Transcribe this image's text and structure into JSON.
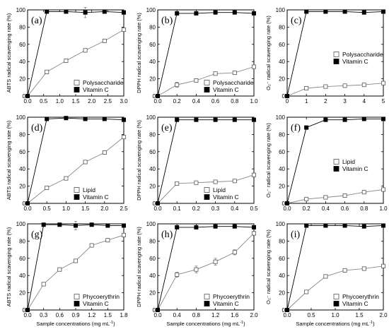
{
  "figure": {
    "shared_xlabel": "Sample concentrations (mg mL",
    "shared_xlabel_sup": "-1",
    "shared_xlabel_end": ")"
  },
  "chart_data": [
    {
      "type": "line",
      "panel_label": "(a)",
      "ylabel": "ABTS radical scavenging rate (%)",
      "xlim": [
        0,
        3.0
      ],
      "ylim": [
        0,
        100
      ],
      "xticks": [
        0.0,
        0.5,
        1.0,
        1.5,
        2.0,
        2.5,
        3.0
      ],
      "xtick_decimals": 1,
      "yticks": [
        0,
        20,
        40,
        60,
        80,
        100
      ],
      "legend_position": "bottom-right",
      "series": [
        {
          "name": "Polysaccharide",
          "marker": "open-square",
          "x": [
            0,
            0.6,
            1.2,
            1.8,
            2.4,
            3.0
          ],
          "y": [
            0,
            28,
            41,
            53,
            64,
            77
          ],
          "err": [
            0,
            1.5,
            1.5,
            2,
            2,
            2
          ]
        },
        {
          "name": "Vitamin C",
          "marker": "filled-square",
          "x": [
            0,
            0.6,
            1.2,
            1.8,
            2.4,
            3.0
          ],
          "y": [
            0,
            98,
            98,
            97,
            98,
            97
          ],
          "err": [
            0,
            1,
            1,
            6,
            2,
            1
          ]
        }
      ]
    },
    {
      "type": "line",
      "panel_label": "(b)",
      "ylabel": "DPPH radical scavenging rate (%)",
      "xlim": [
        0,
        1.0
      ],
      "ylim": [
        0,
        100
      ],
      "xticks": [
        0.0,
        0.2,
        0.4,
        0.6,
        0.8,
        1.0
      ],
      "xtick_decimals": 1,
      "yticks": [
        0,
        20,
        40,
        60,
        80,
        100
      ],
      "legend_position": "bottom-right",
      "series": [
        {
          "name": "Polysaccharide",
          "marker": "open-square",
          "x": [
            0,
            0.2,
            0.4,
            0.6,
            0.8,
            1.0
          ],
          "y": [
            0,
            13,
            18,
            26,
            27,
            34
          ],
          "err": [
            0,
            3,
            2,
            1.5,
            1.5,
            1.5
          ]
        },
        {
          "name": "Vitamin C",
          "marker": "filled-square",
          "x": [
            0,
            0.2,
            0.4,
            0.6,
            0.8,
            1.0
          ],
          "y": [
            0,
            96,
            96,
            97,
            97,
            96
          ],
          "err": [
            0,
            1,
            1,
            1,
            1,
            1
          ]
        }
      ]
    },
    {
      "type": "line",
      "panel_label": "(c)",
      "ylabel": "O₂⁻ radical scavenging rate (%)",
      "xlim": [
        0,
        5
      ],
      "ylim": [
        0,
        100
      ],
      "xticks": [
        0,
        1,
        2,
        3,
        4,
        5
      ],
      "xtick_decimals": 0,
      "yticks": [
        0,
        20,
        40,
        60,
        80,
        100
      ],
      "legend_position": "middle-right",
      "series": [
        {
          "name": "Polysaccharide",
          "marker": "open-square",
          "x": [
            0,
            1,
            2,
            3,
            4,
            5
          ],
          "y": [
            0,
            9,
            11,
            12,
            13,
            15
          ],
          "err": [
            0,
            1,
            1,
            1,
            1,
            1
          ]
        },
        {
          "name": "Vitamin C",
          "marker": "filled-square",
          "x": [
            0,
            1,
            2,
            3,
            4,
            5
          ],
          "y": [
            0,
            98,
            98,
            98,
            97,
            98
          ],
          "err": [
            0,
            1,
            1,
            1,
            1,
            1
          ]
        }
      ]
    },
    {
      "type": "line",
      "panel_label": "(d)",
      "ylabel": "ABTS radical scavenging rate (%)",
      "xlim": [
        0,
        2.5
      ],
      "ylim": [
        0,
        100
      ],
      "xticks": [
        0.0,
        0.5,
        1.0,
        1.5,
        2.0,
        2.5
      ],
      "xtick_decimals": 1,
      "yticks": [
        0,
        20,
        40,
        60,
        80,
        100
      ],
      "legend_position": "bottom-right",
      "series": [
        {
          "name": "Lipid",
          "marker": "open-square",
          "x": [
            0,
            0.5,
            1.0,
            1.5,
            2.0,
            2.5
          ],
          "y": [
            0,
            18,
            29,
            48,
            59,
            77
          ],
          "err": [
            0,
            1.5,
            1.5,
            1.5,
            1.5,
            1.5
          ]
        },
        {
          "name": "Vitamin C",
          "marker": "filled-square",
          "x": [
            0,
            0.5,
            1.0,
            1.5,
            2.0,
            2.5
          ],
          "y": [
            0,
            98,
            99,
            98,
            98,
            97
          ],
          "err": [
            0,
            1,
            1,
            1,
            1,
            1
          ]
        }
      ]
    },
    {
      "type": "line",
      "panel_label": "(e)",
      "ylabel": "DPPH radical scavenging rate (%)",
      "xlim": [
        0,
        0.5
      ],
      "ylim": [
        0,
        100
      ],
      "xticks": [
        0.0,
        0.1,
        0.2,
        0.3,
        0.4,
        0.5
      ],
      "xtick_decimals": 1,
      "yticks": [
        0,
        20,
        40,
        60,
        80,
        100
      ],
      "legend_position": "bottom-right",
      "series": [
        {
          "name": "Lipid",
          "marker": "open-square",
          "x": [
            0,
            0.1,
            0.2,
            0.3,
            0.4,
            0.5
          ],
          "y": [
            0,
            23,
            24,
            25,
            26,
            33
          ],
          "err": [
            0,
            1.5,
            1,
            1,
            1,
            1.5
          ]
        },
        {
          "name": "Vitamin C",
          "marker": "filled-square",
          "x": [
            0,
            0.1,
            0.2,
            0.3,
            0.4,
            0.5
          ],
          "y": [
            0,
            97,
            97,
            97,
            97,
            97
          ],
          "err": [
            0,
            1,
            1,
            1,
            1,
            1
          ]
        }
      ]
    },
    {
      "type": "line",
      "panel_label": "(f)",
      "ylabel": "O₂⁻ radical scavenging rate (%)",
      "xlim": [
        0,
        1.0
      ],
      "ylim": [
        0,
        100
      ],
      "xticks": [
        0.0,
        0.2,
        0.4,
        0.6,
        0.8,
        1.0
      ],
      "xtick_decimals": 1,
      "yticks": [
        0,
        20,
        40,
        60,
        80,
        100
      ],
      "legend_position": "middle-right",
      "series": [
        {
          "name": "Lipid",
          "marker": "open-square",
          "x": [
            0,
            0.2,
            0.4,
            0.6,
            0.8,
            1.0
          ],
          "y": [
            0,
            5,
            7,
            9,
            13,
            16
          ],
          "err": [
            0,
            1,
            1,
            1,
            1,
            1
          ]
        },
        {
          "name": "Vitamin C",
          "marker": "filled-square",
          "x": [
            0,
            0.2,
            0.4,
            0.6,
            0.8,
            1.0
          ],
          "y": [
            0,
            88,
            97,
            97,
            98,
            98
          ],
          "err": [
            0,
            1,
            1,
            1,
            1,
            1
          ]
        }
      ]
    },
    {
      "type": "line",
      "panel_label": "(g)",
      "ylabel": "ABTS radical scavenging rate (%)",
      "xlim": [
        0,
        1.8
      ],
      "ylim": [
        0,
        100
      ],
      "xticks": [
        0.0,
        0.3,
        0.6,
        0.9,
        1.2,
        1.5,
        1.8
      ],
      "xtick_decimals": 1,
      "yticks": [
        0,
        20,
        40,
        60,
        80,
        100
      ],
      "legend_position": "bottom-right",
      "series": [
        {
          "name": "Phycoerythrin",
          "marker": "open-square",
          "x": [
            0,
            0.3,
            0.6,
            0.9,
            1.2,
            1.5,
            1.8
          ],
          "y": [
            0,
            30,
            47,
            57,
            75,
            81,
            87
          ],
          "err": [
            0,
            1.5,
            1.5,
            2,
            2,
            2,
            2
          ]
        },
        {
          "name": "Vitamin C",
          "marker": "filled-square",
          "x": [
            0,
            0.3,
            0.6,
            0.9,
            1.2,
            1.5,
            1.8
          ],
          "y": [
            0,
            99,
            99,
            98,
            99,
            98,
            98
          ],
          "err": [
            0,
            1,
            1,
            5,
            1,
            2,
            1
          ]
        }
      ]
    },
    {
      "type": "line",
      "panel_label": "(h)",
      "ylabel": "DPPH radical scavenging rate (%)",
      "xlim": [
        0,
        2.0
      ],
      "ylim": [
        0,
        100
      ],
      "xticks": [
        0.0,
        0.4,
        0.8,
        1.2,
        1.6,
        2.0
      ],
      "xtick_decimals": 1,
      "yticks": [
        0,
        20,
        40,
        60,
        80,
        100
      ],
      "legend_position": "bottom-right",
      "series": [
        {
          "name": "Phycoerythrin",
          "marker": "open-square",
          "x": [
            0,
            0.4,
            0.8,
            1.2,
            1.6,
            2.0
          ],
          "y": [
            0,
            41,
            47,
            56,
            67,
            89
          ],
          "err": [
            0,
            3,
            4,
            4,
            3,
            2
          ]
        },
        {
          "name": "Vitamin C",
          "marker": "filled-square",
          "x": [
            0,
            0.4,
            0.8,
            1.2,
            1.6,
            2.0
          ],
          "y": [
            0,
            96,
            96,
            97,
            97,
            96
          ],
          "err": [
            0,
            1,
            1,
            1,
            1,
            1
          ]
        }
      ]
    },
    {
      "type": "line",
      "panel_label": "(i)",
      "ylabel": "O₂⁻ radical scavenging rate (%)",
      "xlim": [
        0,
        2.0
      ],
      "ylim": [
        0,
        100
      ],
      "xticks": [
        0.0,
        0.5,
        1.0,
        1.5,
        2.0
      ],
      "xtick_decimals": 1,
      "yticks": [
        0,
        20,
        40,
        60,
        80,
        100
      ],
      "legend_position": "bottom-right",
      "series": [
        {
          "name": "Phycoerythrin",
          "marker": "open-square",
          "x": [
            0,
            0.4,
            0.8,
            1.2,
            1.6,
            2.0
          ],
          "y": [
            0,
            21,
            39,
            46,
            48,
            51
          ],
          "err": [
            0,
            2,
            2,
            2,
            2,
            2
          ]
        },
        {
          "name": "Vitamin C",
          "marker": "filled-square",
          "x": [
            0,
            0.4,
            0.8,
            1.2,
            1.6,
            2.0
          ],
          "y": [
            0,
            98,
            98,
            98,
            97,
            98
          ],
          "err": [
            0,
            1,
            1,
            1,
            1,
            1
          ]
        }
      ]
    }
  ]
}
